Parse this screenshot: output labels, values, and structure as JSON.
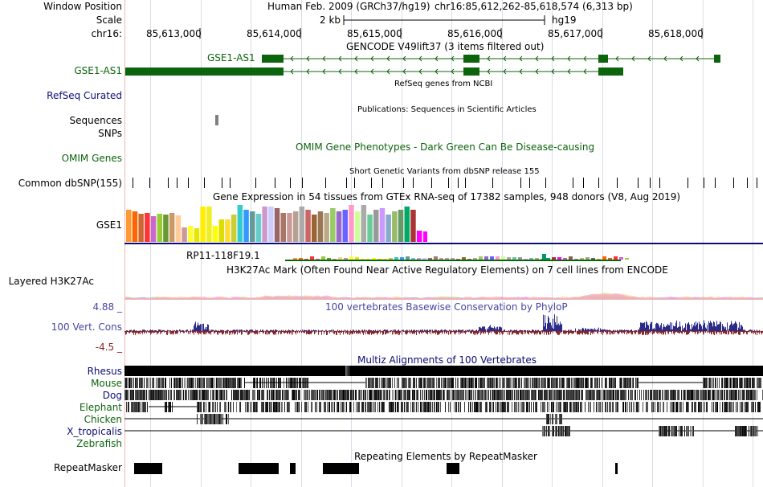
{
  "labels": {
    "window_position": "Window Position",
    "scale": "Scale",
    "chrom": "chr16:",
    "gse1_as1": "GSE1-AS1",
    "refseq_curated": "RefSeq Curated",
    "sequences": "Sequences",
    "snps": "SNPs",
    "omim_genes": "OMIM Genes",
    "common_dbsnp": "Common dbSNP(155)",
    "gse1": "GSE1",
    "layered": "Layered H3K27Ac",
    "cons_max": "4.88 _",
    "vert_cons": "100 Vert. Cons",
    "cons_min": "-4.5 _",
    "rhesus": "Rhesus",
    "mouse": "Mouse",
    "dog": "Dog",
    "elephant": "Elephant",
    "chicken": "Chicken",
    "x_tropicalis": "X_tropicalis",
    "zebrafish": "Zebrafish",
    "repeatmasker": "RepeatMasker"
  },
  "header": {
    "assembly": "Human Feb. 2009 (GRCh37/hg19)",
    "position": "chr16:85,612,262-85,618,574 (6,313 bp)",
    "scale_size": "2 kb",
    "scale_db": "hg19"
  },
  "ruler": {
    "ticks": [
      "85,613,000",
      "85,614,000",
      "85,615,000",
      "85,616,000",
      "85,617,000",
      "85,618,000"
    ]
  },
  "tracks": {
    "gencode_title": "GENCODE V49lift37 (3 items filtered out)",
    "gencode_item": "GSE1-AS1",
    "refseq_title": "RefSeq genes from NCBI",
    "publications_title": "Publications: Sequences in Scientific Articles",
    "omim_title": "OMIM Gene Phenotypes - Dark Green Can Be Disease-causing",
    "snp_title": "Short Genetic Variants from dbSNP release 155",
    "gtex_title": "Gene Expression in 54 tissues from GTEx RNA-seq of 17382 samples, 948 donors (V8, Aug 2019)",
    "gtex_item": "RP11-118F19.1",
    "h3k27_title": "H3K27Ac Mark (Often Found Near Active Regulatory Elements) on 7 cell lines from ENCODE",
    "phylop_title": "100 vertebrates Basewise Conservation by PhyloP",
    "multiz_title": "Multiz Alignments of 100 Vertebrates",
    "rmsk_title": "Repeating Elements by RepeatMasker"
  },
  "colors": {
    "gene": "#0c640c",
    "refseq_label": "#0c0c78",
    "cons_label": "#4646a0",
    "cons_pos": "#2b2b8a",
    "cons_neg": "#8c2323",
    "species_label": "#0c0c78",
    "species_label_green": "#0c640c"
  }
}
